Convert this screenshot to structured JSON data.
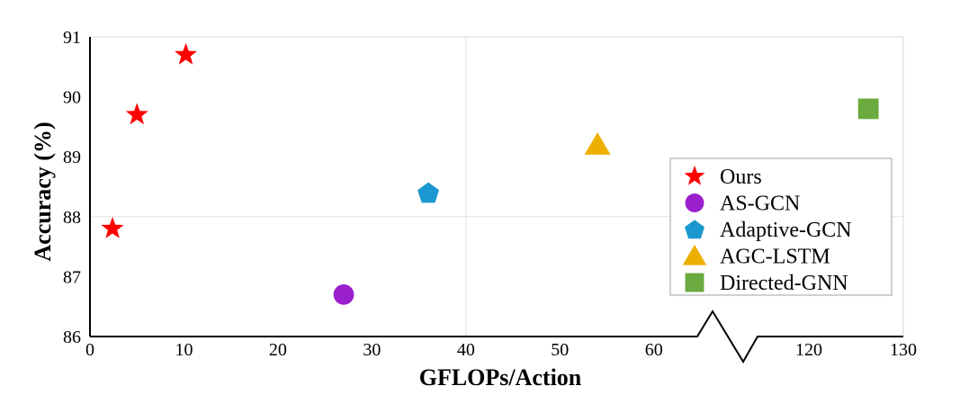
{
  "chart_data": {
    "type": "scatter",
    "xlabel": "GFLOPs/Action",
    "ylabel": "Accuracy (%)",
    "x_ticks": [
      0,
      10,
      20,
      30,
      40,
      50,
      60,
      120,
      130
    ],
    "y_ticks": [
      86,
      87,
      88,
      89,
      90,
      91
    ],
    "ylim": [
      86,
      91
    ],
    "x_axis_break": {
      "lower": [
        0,
        65
      ],
      "upper": [
        111,
        130
      ]
    },
    "grid": "major (x at 40, y at 88)",
    "legend_position": "right",
    "series": [
      {
        "name": "Ours",
        "marker": "star",
        "color": "#ff0000",
        "points": [
          {
            "x": 2.4,
            "y": 87.8
          },
          {
            "x": 5.0,
            "y": 89.7
          },
          {
            "x": 10.2,
            "y": 90.7
          }
        ]
      },
      {
        "name": "AS-GCN",
        "marker": "circle",
        "color": "#9a1fcd",
        "points": [
          {
            "x": 27.0,
            "y": 86.7
          }
        ]
      },
      {
        "name": "Adaptive-GCN",
        "marker": "pentagon",
        "color": "#1a98cf",
        "points": [
          {
            "x": 36.0,
            "y": 88.4
          }
        ]
      },
      {
        "name": "AGC-LSTM",
        "marker": "triangle",
        "color": "#eeb000",
        "points": [
          {
            "x": 54.0,
            "y": 89.2
          }
        ]
      },
      {
        "name": "Directed-GNN",
        "marker": "square",
        "color": "#6aaa3f",
        "points": [
          {
            "x": 126.3,
            "y": 89.8
          }
        ]
      }
    ]
  }
}
